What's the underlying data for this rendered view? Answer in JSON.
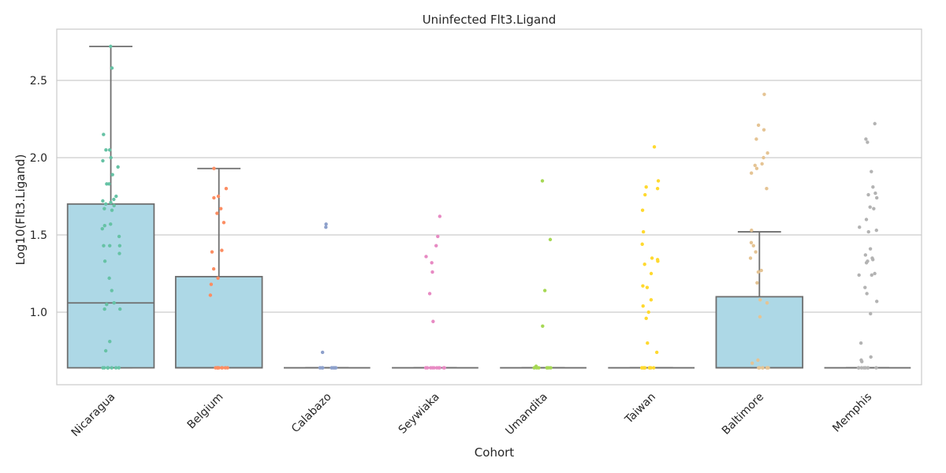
{
  "chart_data": {
    "type": "box",
    "title": "Uninfected Flt3.Ligand",
    "xlabel": "Cohort",
    "ylabel": "Log10(Flt3.Ligand)",
    "ylim": [
      0.5,
      2.78
    ],
    "yticks": [
      1.0,
      1.5,
      2.0,
      2.5
    ],
    "ytick_labels": [
      "1.0",
      "1.5",
      "2.0",
      "2.5"
    ],
    "grid": "horizontal",
    "categories": [
      "Nicaragua",
      "Belgium",
      "Calabazo",
      "Seywiaka",
      "Umandita",
      "Taiwan",
      "Baltimore",
      "Memphis"
    ],
    "box_color": "#add8e6",
    "box_edge_color": "#6e6e6e",
    "boxes": [
      {
        "q1": 0.64,
        "median": 1.06,
        "q3": 1.7,
        "whisker_low": 0.64,
        "whisker_high": 2.72
      },
      {
        "q1": 0.64,
        "median": 0.64,
        "q3": 1.23,
        "whisker_low": 0.64,
        "whisker_high": 1.93
      },
      {
        "q1": 0.64,
        "median": 0.64,
        "q3": 0.64,
        "whisker_low": 0.64,
        "whisker_high": 0.64
      },
      {
        "q1": 0.64,
        "median": 0.64,
        "q3": 0.64,
        "whisker_low": 0.64,
        "whisker_high": 0.64
      },
      {
        "q1": 0.64,
        "median": 0.64,
        "q3": 0.64,
        "whisker_low": 0.64,
        "whisker_high": 0.64
      },
      {
        "q1": 0.64,
        "median": 0.64,
        "q3": 0.64,
        "whisker_low": 0.64,
        "whisker_high": 0.64
      },
      {
        "q1": 0.64,
        "median": 0.64,
        "q3": 1.1,
        "whisker_low": 0.64,
        "whisker_high": 1.52
      },
      {
        "q1": 0.64,
        "median": 0.64,
        "q3": 0.64,
        "whisker_low": 0.64,
        "whisker_high": 0.64
      }
    ],
    "point_colors": [
      "#66c2a5",
      "#fc8d62",
      "#8da0cb",
      "#e78ac3",
      "#a6d854",
      "#ffd92f",
      "#e5c494",
      "#b3b3b3"
    ],
    "points": [
      [
        2.72,
        2.58,
        2.15,
        2.05,
        2.05,
        2.0,
        1.98,
        1.94,
        1.89,
        1.83,
        1.83,
        1.75,
        1.73,
        1.72,
        1.71,
        1.7,
        1.69,
        1.67,
        1.66,
        1.57,
        1.56,
        1.54,
        1.49,
        1.43,
        1.43,
        1.43,
        1.38,
        1.33,
        1.22,
        1.14,
        1.06,
        1.05,
        1.02,
        1.02,
        0.81,
        0.75,
        0.64,
        0.64,
        0.64,
        0.64,
        0.64,
        0.64,
        0.64,
        0.64
      ],
      [
        1.93,
        1.8,
        1.75,
        1.74,
        1.67,
        1.64,
        1.58,
        1.4,
        1.39,
        1.28,
        1.22,
        1.18,
        1.11,
        0.64,
        0.64,
        0.64,
        0.64,
        0.64,
        0.64,
        0.64,
        0.64,
        0.64
      ],
      [
        1.57,
        1.55,
        0.74,
        0.64,
        0.64,
        0.64,
        0.64,
        0.64,
        0.64,
        0.64,
        0.64,
        0.64
      ],
      [
        1.62,
        1.49,
        1.43,
        1.36,
        1.32,
        1.26,
        1.12,
        0.94,
        0.64,
        0.64,
        0.64,
        0.64,
        0.64,
        0.64,
        0.64,
        0.64,
        0.64,
        0.64
      ],
      [
        1.85,
        1.47,
        1.14,
        0.91,
        0.65,
        0.64,
        0.64,
        0.64,
        0.64,
        0.64,
        0.64,
        0.64
      ],
      [
        2.07,
        1.85,
        1.81,
        1.8,
        1.76,
        1.66,
        1.52,
        1.44,
        1.35,
        1.34,
        1.33,
        1.31,
        1.25,
        1.17,
        1.16,
        1.08,
        1.04,
        1.0,
        0.96,
        0.8,
        0.74,
        0.64,
        0.64,
        0.64,
        0.64,
        0.64,
        0.64,
        0.64,
        0.64,
        0.64,
        0.64
      ],
      [
        2.41,
        2.21,
        2.18,
        2.12,
        2.03,
        2.0,
        1.96,
        1.95,
        1.93,
        1.9,
        1.8,
        1.53,
        1.45,
        1.43,
        1.39,
        1.35,
        1.27,
        1.26,
        1.19,
        1.08,
        1.06,
        0.97,
        0.69,
        0.67,
        0.64,
        0.64,
        0.64,
        0.64,
        0.64,
        0.64,
        0.64
      ],
      [
        2.22,
        2.12,
        2.1,
        1.91,
        1.81,
        1.77,
        1.76,
        1.74,
        1.68,
        1.67,
        1.6,
        1.55,
        1.53,
        1.52,
        1.41,
        1.37,
        1.35,
        1.34,
        1.33,
        1.32,
        1.25,
        1.24,
        1.24,
        1.16,
        1.12,
        1.07,
        0.99,
        0.8,
        0.71,
        0.69,
        0.68,
        0.64,
        0.64,
        0.64,
        0.64,
        0.64,
        0.64,
        0.64,
        0.64
      ]
    ]
  }
}
